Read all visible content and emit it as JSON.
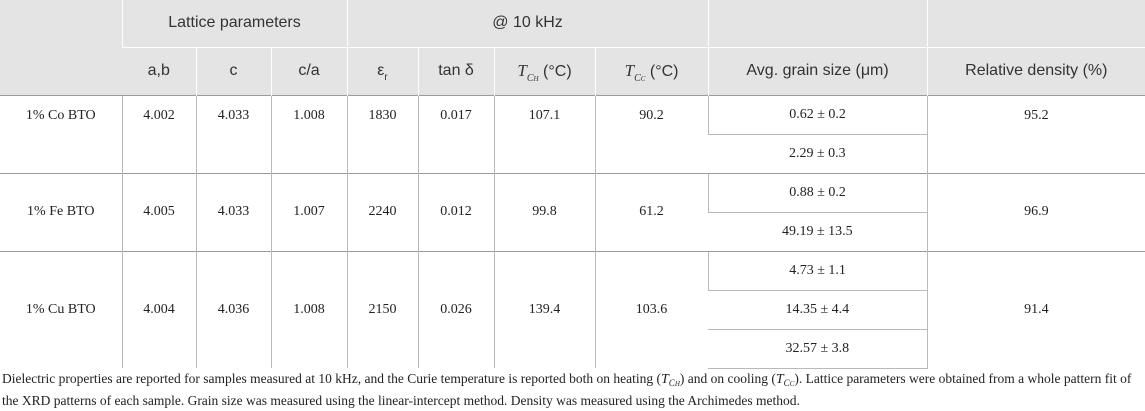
{
  "header": {
    "group_lattice": "Lattice parameters",
    "group_freq": "@ 10 kHz",
    "col_ab": "a,b",
    "col_c": "c",
    "col_ca": "c/a",
    "col_er": "ε",
    "col_er_sub": "r",
    "col_tan": "tan δ",
    "col_tch_T": "T",
    "col_tch_sub": "C",
    "col_tch_subsub": "H",
    "col_tcc_T": "T",
    "col_tcc_sub": "C",
    "col_tcc_subsub": "C",
    "col_unit": "(°C)",
    "col_grain": "Avg. grain size (μm)",
    "col_density": "Relative density (%)"
  },
  "rows": [
    {
      "sample": "1% Co BTO",
      "ab": "4.002",
      "c": "4.033",
      "ca": "1.008",
      "er": "1830",
      "tan": "0.017",
      "tch": "107.1",
      "tcc": "90.2",
      "grain": [
        "0.62 ± 0.2",
        "2.29 ± 0.3"
      ],
      "density": "95.2"
    },
    {
      "sample": "1% Fe BTO",
      "ab": "4.005",
      "c": "4.033",
      "ca": "1.007",
      "er": "2240",
      "tan": "0.012",
      "tch": "99.8",
      "tcc": "61.2",
      "grain": [
        "0.88 ± 0.2",
        "49.19 ± 13.5"
      ],
      "density": "96.9"
    },
    {
      "sample": "1% Cu BTO",
      "ab": "4.004",
      "c": "4.036",
      "ca": "1.008",
      "er": "2150",
      "tan": "0.026",
      "tch": "139.4",
      "tcc": "103.6",
      "grain": [
        "4.73 ± 1.1",
        "14.35 ± 4.4",
        "32.57 ± 3.8"
      ],
      "density": "91.4"
    }
  ],
  "footnote": {
    "part1": "Dielectric properties are reported for samples measured at 10 kHz, and the Curie temperature is reported both on heating (",
    "part2": ") and on cooling (",
    "part3": "). Lattice parameters were obtained from a whole pattern fit of the XRD patterns of each sample. Grain size was measured using the linear-intercept method. Density was measured using the Archimedes method."
  }
}
